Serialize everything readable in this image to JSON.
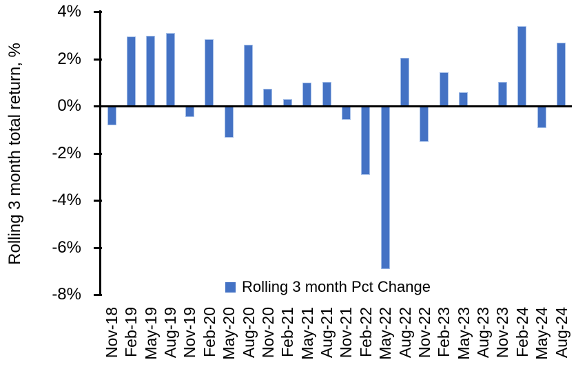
{
  "chart_data": {
    "type": "bar",
    "title": "",
    "xlabel": "",
    "ylabel": "Rolling 3 month total return, %",
    "legend": [
      "Rolling 3 month Pct Change"
    ],
    "legend_position": "inside-bottom-center",
    "grid": false,
    "bar_color": "#4472C4",
    "axis_color": "#000000",
    "ylim": [
      -8,
      4
    ],
    "ytick_step": 2,
    "yticks": [
      "4%",
      "2%",
      "0%",
      "-2%",
      "-4%",
      "-6%",
      "-8%"
    ],
    "categories": [
      "Nov-18",
      "Feb-19",
      "May-19",
      "Aug-19",
      "Nov-19",
      "Feb-20",
      "May-20",
      "Aug-20",
      "Nov-20",
      "Feb-21",
      "May-21",
      "Aug-21",
      "Nov-21",
      "Feb-22",
      "May-22",
      "Aug-22",
      "Nov-22",
      "Feb-23",
      "May-23",
      "Aug-23",
      "Nov-23",
      "Feb-24",
      "May-24",
      "Aug-24"
    ],
    "values": [
      -0.8,
      2.95,
      3.0,
      3.1,
      -0.45,
      2.85,
      -1.3,
      2.6,
      0.75,
      0.3,
      1.0,
      1.05,
      -0.55,
      -2.9,
      -6.9,
      2.05,
      -1.5,
      1.45,
      0.6,
      0.0,
      1.05,
      3.4,
      -0.9,
      2.7
    ]
  }
}
